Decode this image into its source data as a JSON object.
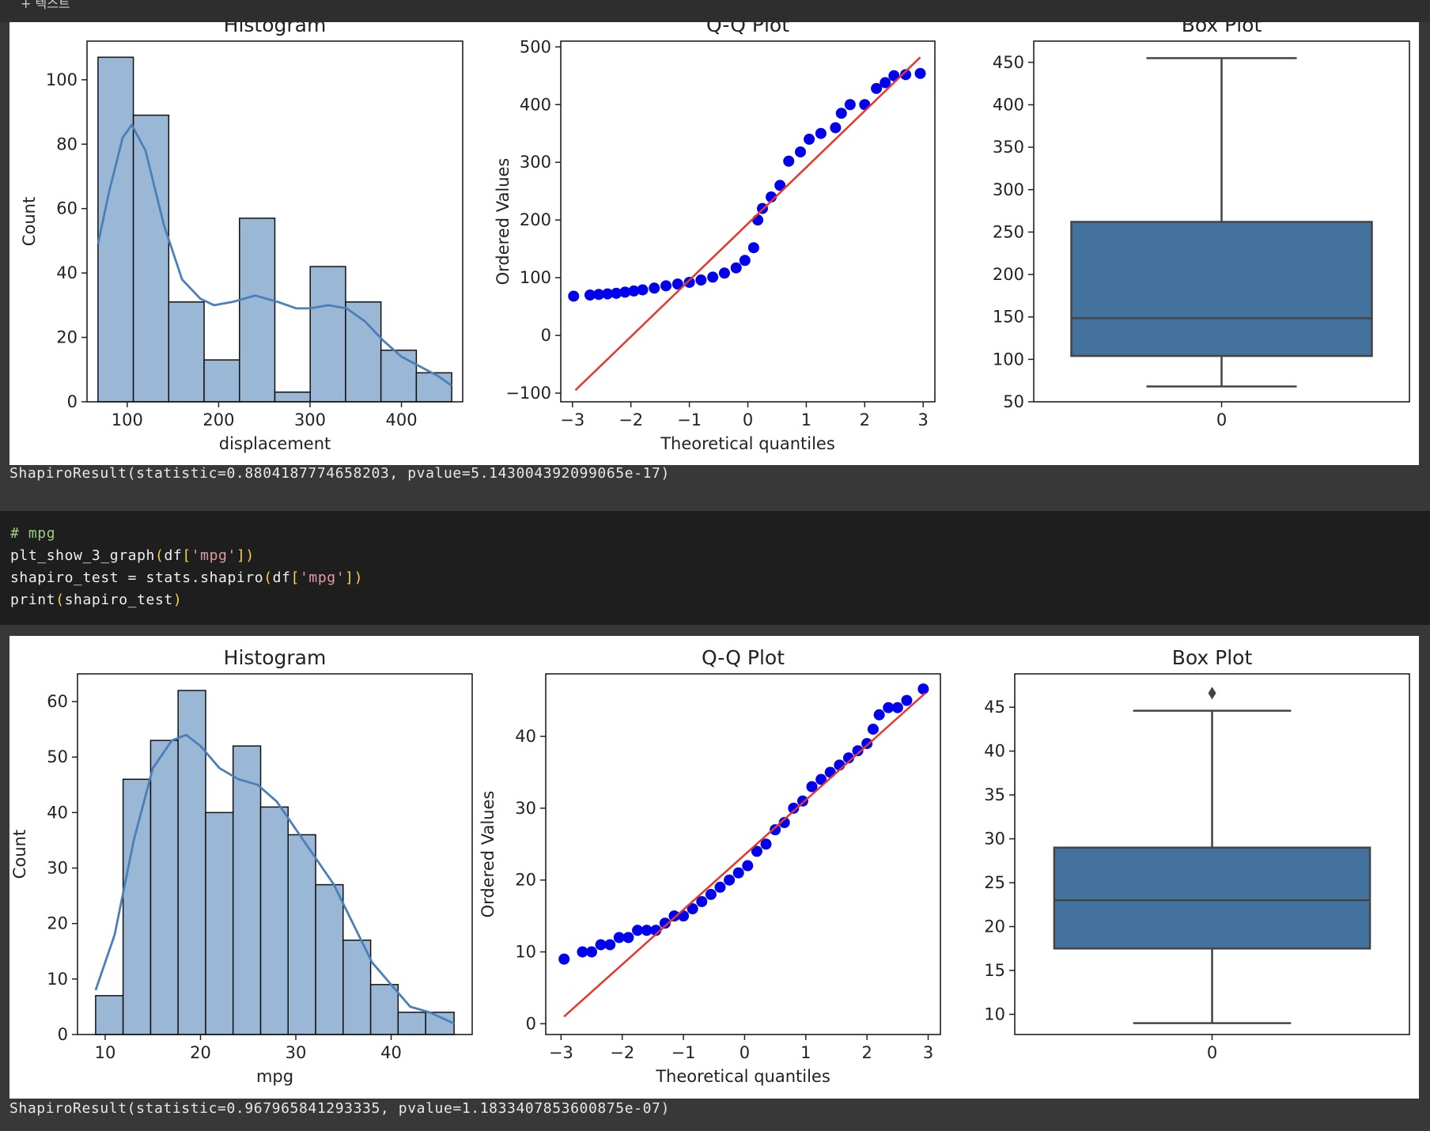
{
  "topbar": {
    "label": "+ 텍스트"
  },
  "outputs": {
    "displacement": "ShapiroResult(statistic=0.8804187774658203, pvalue=5.143004392099065e-17)",
    "mpg": "ShapiroResult(statistic=0.967965841293335, pvalue=1.1833407853600875e-07)"
  },
  "code_cell": {
    "comment": "# mpg",
    "fn_call": "plt_show_3_graph",
    "arg_df": "df",
    "arg_key": "'mpg'",
    "assign_lhs": "shapiro_test = stats.shapiro",
    "print_fn": "print",
    "print_arg": "shapiro_test"
  },
  "colors": {
    "bar": "#9ab8d6",
    "kde": "#4a7fb8",
    "qq_point": "#0000ee",
    "qq_line": "#e8352a",
    "box": "#44729e"
  },
  "chart_data": [
    {
      "type": "bar",
      "panel": "displacement-histogram",
      "title": "Histogram",
      "xlabel": "displacement",
      "ylabel": "Count",
      "bin_edges": [
        68,
        106.7,
        145.4,
        184.1,
        222.8,
        261.5,
        300.2,
        338.9,
        377.6,
        416.3,
        455
      ],
      "values": [
        107,
        89,
        31,
        13,
        57,
        3,
        42,
        31,
        16,
        9
      ],
      "kde": [
        [
          68,
          49
        ],
        [
          80,
          65
        ],
        [
          95,
          82
        ],
        [
          105,
          86
        ],
        [
          120,
          78
        ],
        [
          140,
          55
        ],
        [
          160,
          38
        ],
        [
          180,
          32
        ],
        [
          195,
          30
        ],
        [
          215,
          31
        ],
        [
          240,
          33
        ],
        [
          265,
          31
        ],
        [
          285,
          29
        ],
        [
          300,
          29
        ],
        [
          320,
          30
        ],
        [
          340,
          29
        ],
        [
          360,
          25
        ],
        [
          380,
          19
        ],
        [
          400,
          14
        ],
        [
          420,
          11
        ],
        [
          440,
          8
        ],
        [
          455,
          5
        ]
      ],
      "xlim": [
        56,
        467
      ],
      "ylim": [
        0,
        112
      ],
      "xticks": [
        100,
        200,
        300,
        400
      ],
      "yticks": [
        0,
        20,
        40,
        60,
        80,
        100
      ]
    },
    {
      "type": "scatter",
      "panel": "displacement-qq",
      "title": "Q-Q Plot",
      "xlabel": "Theoretical quantiles",
      "ylabel": "Ordered Values",
      "points": [
        [
          -2.98,
          68
        ],
        [
          -2.7,
          70
        ],
        [
          -2.55,
          71
        ],
        [
          -2.4,
          72
        ],
        [
          -2.25,
          73
        ],
        [
          -2.1,
          75
        ],
        [
          -1.95,
          77
        ],
        [
          -1.8,
          79
        ],
        [
          -1.6,
          82
        ],
        [
          -1.4,
          86
        ],
        [
          -1.2,
          89
        ],
        [
          -1.0,
          92
        ],
        [
          -0.8,
          96
        ],
        [
          -0.6,
          101
        ],
        [
          -0.4,
          108
        ],
        [
          -0.2,
          117
        ],
        [
          -0.05,
          130
        ],
        [
          0.1,
          152
        ],
        [
          0.17,
          200
        ],
        [
          0.25,
          220
        ],
        [
          0.4,
          240
        ],
        [
          0.55,
          260
        ],
        [
          0.7,
          302
        ],
        [
          0.9,
          318
        ],
        [
          1.05,
          340
        ],
        [
          1.25,
          350
        ],
        [
          1.5,
          360
        ],
        [
          1.6,
          385
        ],
        [
          1.75,
          400
        ],
        [
          2.0,
          400
        ],
        [
          2.2,
          428
        ],
        [
          2.35,
          438
        ],
        [
          2.5,
          450
        ],
        [
          2.7,
          452
        ],
        [
          2.95,
          454
        ]
      ],
      "fit_line": [
        [
          -2.95,
          -95
        ],
        [
          2.95,
          482
        ]
      ],
      "xlim": [
        -3.2,
        3.2
      ],
      "ylim": [
        -115,
        510
      ],
      "xticks": [
        -3,
        -2,
        -1,
        0,
        1,
        2,
        3
      ],
      "yticks": [
        -100,
        0,
        100,
        200,
        300,
        400,
        500
      ]
    },
    {
      "type": "box",
      "panel": "displacement-box",
      "title": "Box Plot",
      "category": "0",
      "min": 68,
      "q1": 104,
      "median": 148.5,
      "q3": 262,
      "max": 455,
      "ylim": [
        50,
        475
      ],
      "yticks": [
        50,
        100,
        150,
        200,
        250,
        300,
        350,
        400,
        450
      ]
    },
    {
      "type": "bar",
      "panel": "mpg-histogram",
      "title": "Histogram",
      "xlabel": "mpg",
      "ylabel": "Count",
      "bin_edges": [
        9,
        11.88,
        14.77,
        17.65,
        20.54,
        23.42,
        26.31,
        29.19,
        32.08,
        34.96,
        37.85,
        40.73,
        43.62,
        46.6
      ],
      "values": [
        7,
        46,
        53,
        62,
        40,
        52,
        41,
        36,
        27,
        17,
        9,
        4,
        4
      ],
      "kde": [
        [
          9,
          8
        ],
        [
          11,
          18
        ],
        [
          13,
          35
        ],
        [
          15,
          48
        ],
        [
          17,
          53
        ],
        [
          18.5,
          54
        ],
        [
          20,
          52
        ],
        [
          22,
          48
        ],
        [
          24,
          46
        ],
        [
          26,
          45
        ],
        [
          28,
          42
        ],
        [
          30,
          37
        ],
        [
          32,
          32
        ],
        [
          34,
          27
        ],
        [
          36,
          20
        ],
        [
          38,
          13
        ],
        [
          40,
          9
        ],
        [
          42,
          5
        ],
        [
          44,
          4
        ],
        [
          46.6,
          2
        ]
      ],
      "xlim": [
        7.1,
        48.5
      ],
      "ylim": [
        0,
        65
      ],
      "xticks": [
        10,
        20,
        30,
        40
      ],
      "yticks": [
        0,
        10,
        20,
        30,
        40,
        50,
        60
      ]
    },
    {
      "type": "scatter",
      "panel": "mpg-qq",
      "title": "Q-Q Plot",
      "xlabel": "Theoretical quantiles",
      "ylabel": "Ordered Values",
      "points": [
        [
          -2.95,
          9
        ],
        [
          -2.65,
          10
        ],
        [
          -2.5,
          10
        ],
        [
          -2.35,
          11
        ],
        [
          -2.2,
          11
        ],
        [
          -2.05,
          12
        ],
        [
          -1.9,
          12
        ],
        [
          -1.75,
          13
        ],
        [
          -1.6,
          13
        ],
        [
          -1.45,
          13
        ],
        [
          -1.3,
          14
        ],
        [
          -1.15,
          15
        ],
        [
          -1.0,
          15
        ],
        [
          -0.85,
          16
        ],
        [
          -0.7,
          17
        ],
        [
          -0.55,
          18
        ],
        [
          -0.4,
          19
        ],
        [
          -0.25,
          20
        ],
        [
          -0.1,
          21
        ],
        [
          0.05,
          22
        ],
        [
          0.2,
          24
        ],
        [
          0.35,
          25
        ],
        [
          0.5,
          27
        ],
        [
          0.65,
          28
        ],
        [
          0.8,
          30
        ],
        [
          0.95,
          31
        ],
        [
          1.1,
          33
        ],
        [
          1.25,
          34
        ],
        [
          1.4,
          35
        ],
        [
          1.55,
          36
        ],
        [
          1.7,
          37
        ],
        [
          1.85,
          38
        ],
        [
          2.0,
          39
        ],
        [
          2.1,
          41
        ],
        [
          2.2,
          43
        ],
        [
          2.35,
          44
        ],
        [
          2.5,
          44
        ],
        [
          2.65,
          45
        ],
        [
          2.92,
          46.6
        ]
      ],
      "fit_line": [
        [
          -2.95,
          1
        ],
        [
          2.95,
          46
        ]
      ],
      "xlim": [
        -3.25,
        3.2
      ],
      "ylim": [
        -1.5,
        48.7
      ],
      "xticks": [
        -3,
        -2,
        -1,
        0,
        1,
        2,
        3
      ],
      "yticks": [
        0,
        10,
        20,
        30,
        40
      ]
    },
    {
      "type": "box",
      "panel": "mpg-box",
      "title": "Box Plot",
      "category": "0",
      "min": 9,
      "q1": 17.5,
      "median": 23,
      "q3": 29,
      "max": 44.6,
      "outliers": [
        46.6
      ],
      "ylim": [
        7.7,
        48.8
      ],
      "yticks": [
        10,
        15,
        20,
        25,
        30,
        35,
        40,
        45
      ]
    }
  ]
}
